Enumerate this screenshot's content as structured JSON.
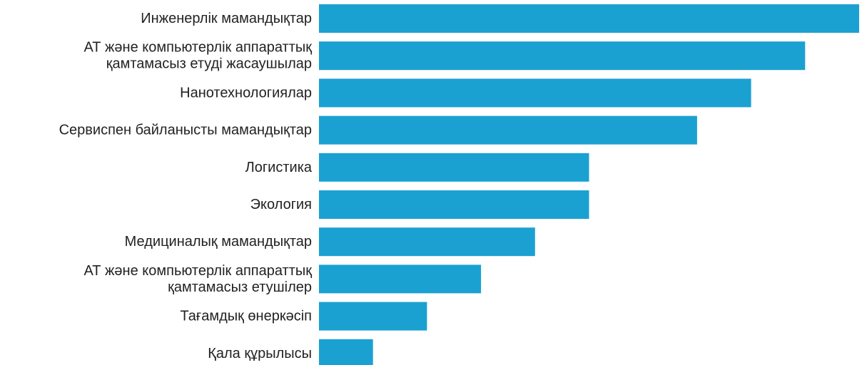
{
  "chart_data": {
    "type": "bar",
    "orientation": "horizontal",
    "categories": [
      [
        "Инженерлік мамандықтар"
      ],
      [
        "АТ және компьютерлік аппараттық",
        "қамтамасыз етуді жасаушылар"
      ],
      [
        "Нанотехнологиялар"
      ],
      [
        "Сервиспен байланысты мамандықтар"
      ],
      [
        "Логистика"
      ],
      [
        "Экология"
      ],
      [
        "Медициналық мамандықтар"
      ],
      [
        "АТ және компьютерлік аппараттық",
        "қамтамасыз етушілер"
      ],
      [
        "Тағамдық өнеркәсіп"
      ],
      [
        "Қала құрылысы"
      ]
    ],
    "values": [
      100,
      90,
      80,
      70,
      50,
      50,
      40,
      30,
      20,
      10
    ],
    "xlim": [
      0,
      100
    ],
    "bar_color": "#1ba1d1",
    "grid": false,
    "legend": "none",
    "title": "",
    "xlabel": "",
    "ylabel": ""
  }
}
